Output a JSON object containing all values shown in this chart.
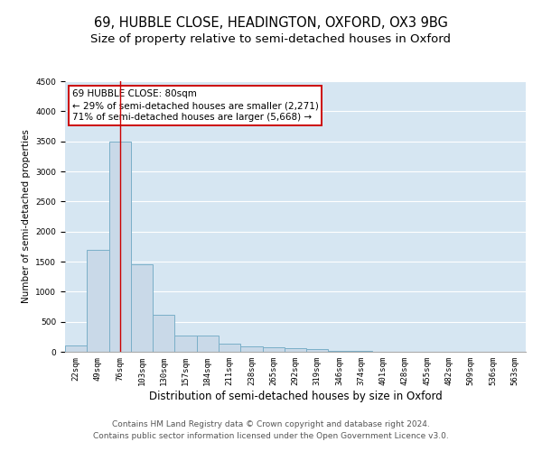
{
  "title": "69, HUBBLE CLOSE, HEADINGTON, OXFORD, OX3 9BG",
  "subtitle": "Size of property relative to semi-detached houses in Oxford",
  "xlabel": "Distribution of semi-detached houses by size in Oxford",
  "ylabel": "Number of semi-detached properties",
  "categories": [
    "22sqm",
    "49sqm",
    "76sqm",
    "103sqm",
    "130sqm",
    "157sqm",
    "184sqm",
    "211sqm",
    "238sqm",
    "265sqm",
    "292sqm",
    "319sqm",
    "346sqm",
    "374sqm",
    "401sqm",
    "428sqm",
    "455sqm",
    "482sqm",
    "509sqm",
    "536sqm",
    "563sqm"
  ],
  "values": [
    100,
    1700,
    3500,
    1450,
    620,
    270,
    270,
    140,
    85,
    80,
    55,
    40,
    20,
    10,
    5,
    3,
    2,
    2,
    1,
    1,
    1
  ],
  "bar_color": "#c9d9e8",
  "bar_edge_color": "#7aafc8",
  "bar_linewidth": 0.7,
  "red_line_index": 2,
  "red_line_color": "#cc0000",
  "property_label": "69 HUBBLE CLOSE: 80sqm",
  "annotation_line1": "← 29% of semi-detached houses are smaller (2,271)",
  "annotation_line2": "71% of semi-detached houses are larger (5,668) →",
  "annotation_box_edgecolor": "#cc0000",
  "annotation_box_facecolor": "#ffffff",
  "ylim": [
    0,
    4500
  ],
  "yticks": [
    0,
    500,
    1000,
    1500,
    2000,
    2500,
    3000,
    3500,
    4000,
    4500
  ],
  "grid_color": "#ffffff",
  "bg_color": "#d6e6f2",
  "footer_line1": "Contains HM Land Registry data © Crown copyright and database right 2024.",
  "footer_line2": "Contains public sector information licensed under the Open Government Licence v3.0.",
  "title_fontsize": 10.5,
  "subtitle_fontsize": 9.5,
  "xlabel_fontsize": 8.5,
  "ylabel_fontsize": 7.5,
  "tick_fontsize": 6.5,
  "footer_fontsize": 6.5,
  "annot_fontsize": 7.5
}
